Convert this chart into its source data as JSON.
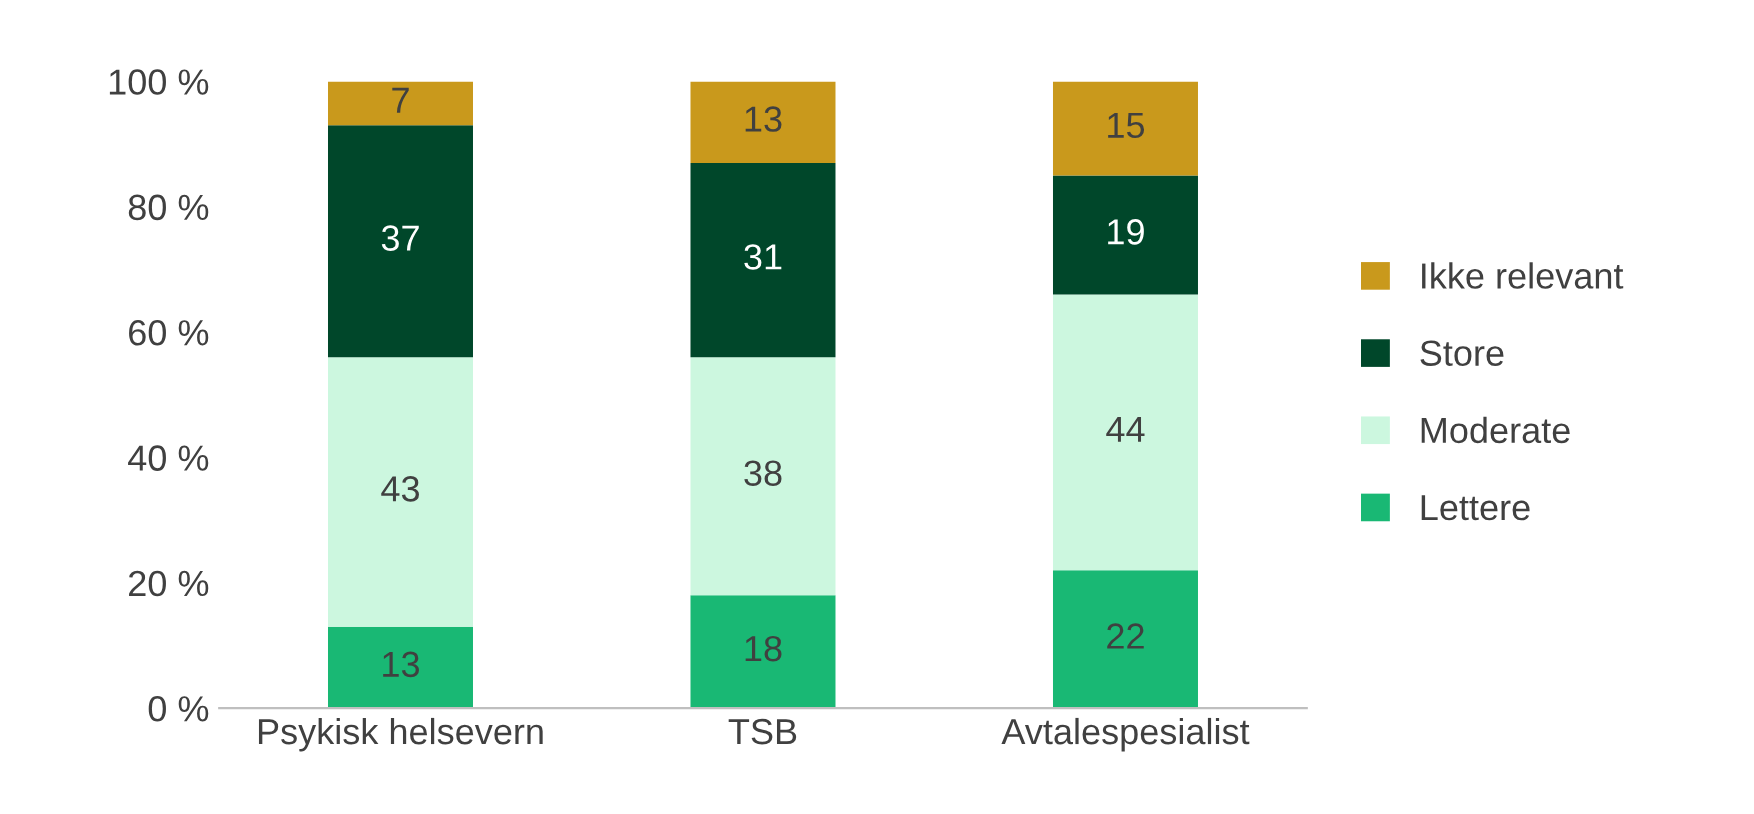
{
  "chart_data": {
    "type": "bar",
    "stacked": true,
    "categories": [
      "Psykisk helsevern",
      "TSB",
      "Avtalespesialist"
    ],
    "series": [
      {
        "name": "Lettere",
        "color": "#19b874",
        "values": [
          13,
          18,
          22
        ]
      },
      {
        "name": "Moderate",
        "color": "#ccf7df",
        "values": [
          43,
          38,
          44
        ]
      },
      {
        "name": "Store",
        "color": "#00472a",
        "values": [
          37,
          31,
          19
        ]
      },
      {
        "name": "Ikke relevant",
        "color": "#c9991c",
        "values": [
          7,
          13,
          15
        ]
      }
    ],
    "ylim": [
      0,
      100
    ],
    "yticks": [
      {
        "value": 0,
        "label": "0 %"
      },
      {
        "value": 20,
        "label": "20 %"
      },
      {
        "value": 40,
        "label": "40 %"
      },
      {
        "value": 60,
        "label": "60 %"
      },
      {
        "value": 80,
        "label": "80 %"
      },
      {
        "value": 100,
        "label": "100 %"
      }
    ],
    "data_labels": true,
    "legend": "right",
    "grid": false
  }
}
